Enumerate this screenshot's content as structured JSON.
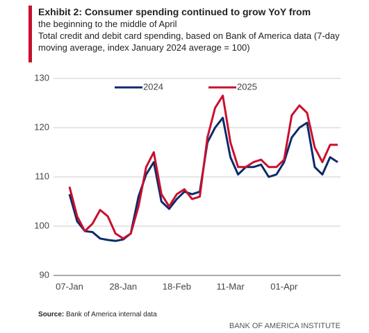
{
  "chart_data": {
    "type": "line",
    "title": "Exhibit 2: Consumer spending continued to grow YoY from",
    "subtitle": [
      "the beginning to the middle of April",
      "Total credit and debit card spending, based on Bank of America data (7-day moving average, index January 2024 average = 100)"
    ],
    "categories": [
      "07-Jan",
      null,
      null,
      null,
      null,
      null,
      null,
      "28-Jan",
      null,
      null,
      null,
      null,
      null,
      null,
      "18-Feb",
      null,
      null,
      null,
      null,
      null,
      null,
      "11-Mar",
      null,
      null,
      null,
      null,
      null,
      null,
      "01-Apr",
      null,
      null,
      null,
      null,
      null,
      null,
      null
    ],
    "series": [
      {
        "name": "2024",
        "color": "#0c2a6b",
        "values": [
          106.5,
          101,
          99,
          98.8,
          97.5,
          97.2,
          97.0,
          97.3,
          98.5,
          106,
          110.5,
          113,
          105,
          103.5,
          105.5,
          107,
          106.5,
          107,
          117,
          120,
          122,
          114,
          110.5,
          112,
          112,
          112.5,
          110,
          110.5,
          113,
          118,
          120,
          121,
          112,
          110.5,
          114,
          113
        ]
      },
      {
        "name": "2025",
        "color": "#c8102e",
        "values": [
          108,
          102,
          99,
          100.5,
          103.3,
          102,
          98.5,
          97.5,
          98.5,
          104,
          112,
          115,
          106.5,
          104,
          106.5,
          107.5,
          105.5,
          106,
          118,
          124,
          126.5,
          117,
          112,
          112,
          113,
          113.5,
          112,
          112,
          113.5,
          122.5,
          124.5,
          123,
          116,
          113,
          116.5,
          116.5
        ]
      }
    ],
    "ylim": [
      90,
      130
    ],
    "yticks": [
      90,
      100,
      110,
      120,
      130
    ],
    "grid": true,
    "source_label": "Source:",
    "source": "Bank of America internal data",
    "brand": "BANK OF AMERICA INSTITUTE"
  }
}
